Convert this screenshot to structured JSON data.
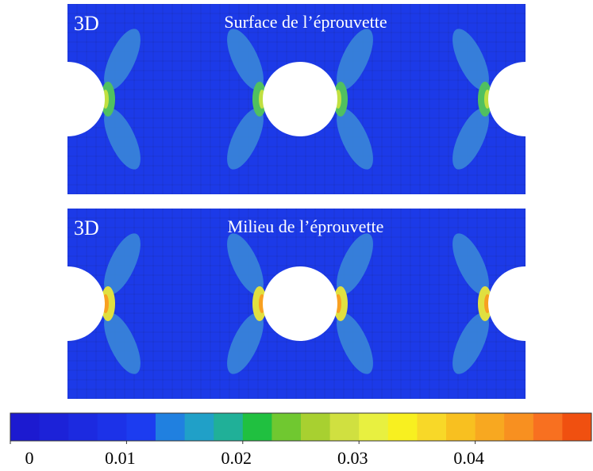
{
  "panels": [
    {
      "label": "3D",
      "title": "Surface de l’éprouvette"
    },
    {
      "label": "3D",
      "title": "Milieu de l’éprouvette"
    }
  ],
  "colorbar": {
    "lim": [
      0,
      0.05
    ],
    "ticks": [
      0,
      0.01,
      0.02,
      0.03,
      0.04
    ],
    "colors": [
      "#1c1ad0",
      "#1c22d8",
      "#1c2ae0",
      "#1c32e8",
      "#1c3cf0",
      "#2080e0",
      "#20a0c8",
      "#20b098",
      "#20c040",
      "#70c830",
      "#a8d030",
      "#d0e040",
      "#e8f040",
      "#f8f020",
      "#f8d828",
      "#f8c020",
      "#f8a820",
      "#f89020",
      "#f87020",
      "#f05010"
    ]
  }
}
